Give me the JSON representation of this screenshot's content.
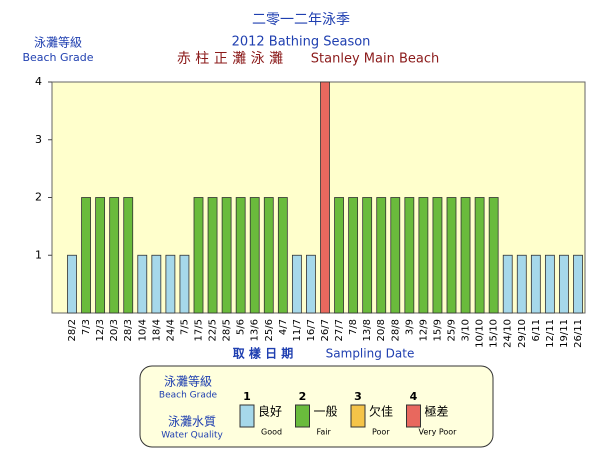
{
  "chart_data": {
    "type": "bar",
    "title_zh": "二零一二年泳季",
    "title_en": "2012 Bathing Season",
    "beach_zh": "赤 柱 正 灘 泳 灘",
    "beach_en": "Stanley Main Beach",
    "y_label_zh": "泳灘等級",
    "y_label_en": "Beach Grade",
    "x_label_zh": "取 樣 日 期",
    "x_label_en": "Sampling Date",
    "categories": [
      "28/2",
      "7/3",
      "12/3",
      "20/3",
      "28/3",
      "10/4",
      "18/4",
      "24/4",
      "7/5",
      "17/5",
      "22/5",
      "28/5",
      "5/6",
      "13/6",
      "25/6",
      "4/7",
      "11/7",
      "16/7",
      "26/7",
      "27/7",
      "7/8",
      "13/8",
      "20/8",
      "28/8",
      "3/9",
      "12/9",
      "15/9",
      "25/9",
      "3/10",
      "10/10",
      "15/10",
      "24/10",
      "29/10",
      "6/11",
      "12/11",
      "19/11",
      "26/11"
    ],
    "values": [
      1,
      2,
      2,
      2,
      2,
      1,
      1,
      1,
      1,
      2,
      2,
      2,
      2,
      2,
      2,
      2,
      1,
      1,
      4,
      2,
      2,
      2,
      2,
      2,
      2,
      2,
      2,
      2,
      2,
      2,
      2,
      1,
      1,
      1,
      1,
      1,
      1
    ],
    "ylim": [
      0,
      4
    ],
    "yticks": [
      1,
      2,
      3,
      4
    ],
    "legend": {
      "grade_zh": "泳灘等級",
      "grade_en": "Beach Grade",
      "quality_zh": "泳灘水質",
      "quality_en": "Water Quality",
      "items": [
        {
          "grade": 1,
          "label_zh": "良好",
          "label_en": "Good",
          "color": "#a6d8ea"
        },
        {
          "grade": 2,
          "label_zh": "一般",
          "label_en": "Fair",
          "color": "#6abb3c"
        },
        {
          "grade": 3,
          "label_zh": "欠佳",
          "label_en": "Poor",
          "color": "#f5c448"
        },
        {
          "grade": 4,
          "label_zh": "極差",
          "label_en": "Very Poor",
          "color": "#e8685e"
        }
      ]
    }
  }
}
